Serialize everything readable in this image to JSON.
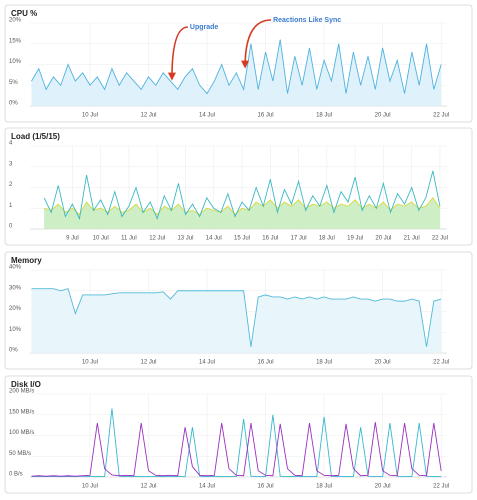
{
  "chart_data": [
    {
      "type": "area",
      "title": "CPU %",
      "x": [
        8,
        8.25,
        8.5,
        8.75,
        9,
        9.25,
        9.5,
        9.75,
        10,
        10.25,
        10.5,
        10.75,
        11,
        11.25,
        11.5,
        11.75,
        12,
        12.25,
        12.5,
        12.75,
        13,
        13.25,
        13.5,
        13.75,
        14,
        14.25,
        14.5,
        14.75,
        15,
        15.25,
        15.5,
        15.75,
        16,
        16.25,
        16.5,
        16.75,
        17,
        17.25,
        17.5,
        17.75,
        18,
        18.25,
        18.5,
        18.75,
        19,
        19.25,
        19.5,
        19.75,
        20,
        20.25,
        20.5,
        20.75,
        21,
        21.25,
        21.5,
        21.75,
        22
      ],
      "series": [
        {
          "color": "#4fb3e0",
          "fill": "#dcf0fa",
          "values": [
            6,
            9,
            4,
            7,
            5,
            10,
            6,
            8,
            5,
            7,
            4,
            9,
            5,
            8,
            6,
            4,
            7,
            5,
            8,
            6,
            4,
            7,
            9,
            5,
            3,
            6,
            10,
            5,
            8,
            4,
            15,
            4,
            13,
            6,
            16,
            3,
            12,
            5,
            14,
            4,
            11,
            6,
            15,
            3,
            13,
            5,
            12,
            4,
            14,
            6,
            11,
            3,
            13,
            5,
            15,
            4,
            10
          ]
        }
      ],
      "xlim": [
        7.95,
        22.2
      ],
      "ylim": [
        0,
        20
      ],
      "xticks": [
        {
          "value": 10,
          "label": "10 Jul"
        },
        {
          "value": 12,
          "label": "12 Jul"
        },
        {
          "value": 14,
          "label": "14 Jul"
        },
        {
          "value": 16,
          "label": "16 Jul"
        },
        {
          "value": 18,
          "label": "18 Jul"
        },
        {
          "value": 20,
          "label": "20 Jul"
        },
        {
          "value": 22,
          "label": "22 Jul"
        }
      ],
      "yticks": [
        {
          "value": 0,
          "label": "0%"
        },
        {
          "value": 5,
          "label": "5%"
        },
        {
          "value": 10,
          "label": "10%"
        },
        {
          "value": 15,
          "label": "15%"
        },
        {
          "value": 20,
          "label": "20%"
        }
      ],
      "grid": true,
      "annotations": [
        {
          "text": "Upgrade",
          "x": 12.8
        },
        {
          "text": "Reactions Like Sync",
          "x": 15.3
        }
      ]
    },
    {
      "type": "area",
      "title": "Load (1/5/15)",
      "x": [
        8,
        8.25,
        8.5,
        8.75,
        9,
        9.25,
        9.5,
        9.75,
        10,
        10.25,
        10.5,
        10.75,
        11,
        11.25,
        11.5,
        11.75,
        12,
        12.25,
        12.5,
        12.75,
        13,
        13.25,
        13.5,
        13.75,
        14,
        14.25,
        14.5,
        14.75,
        15,
        15.25,
        15.5,
        15.75,
        16,
        16.25,
        16.5,
        16.75,
        17,
        17.25,
        17.5,
        17.75,
        18,
        18.25,
        18.5,
        18.75,
        19,
        19.25,
        19.5,
        19.75,
        20,
        20.25,
        20.5,
        20.75,
        21,
        21.25,
        21.5,
        21.75,
        22
      ],
      "series": [
        {
          "color": "#d9d93a",
          "fill": "#c9ecc0",
          "values": [
            1.0,
            0.9,
            1.2,
            0.8,
            1.0,
            0.7,
            1.3,
            0.9,
            1.0,
            0.8,
            1.1,
            0.8,
            0.9,
            1.2,
            0.8,
            1.0,
            0.7,
            1.1,
            0.9,
            1.2,
            0.8,
            0.9,
            0.7,
            1.0,
            0.9,
            0.8,
            1.1,
            0.7,
            1.0,
            0.9,
            1.3,
            1.1,
            1.4,
            1.0,
            1.3,
            1.1,
            1.4,
            1.0,
            1.2,
            1.1,
            1.3,
            1.0,
            1.2,
            1.1,
            1.4,
            1.0,
            1.2,
            1.0,
            1.3,
            0.9,
            1.2,
            1.1,
            1.3,
            1.0,
            1.1,
            1.5,
            1.0
          ]
        },
        {
          "color": "#3bb8c4",
          "values": [
            1.5,
            0.8,
            2.1,
            0.6,
            1.2,
            0.5,
            2.6,
            0.9,
            1.4,
            0.7,
            1.8,
            0.6,
            1.1,
            2.0,
            0.8,
            1.3,
            0.5,
            1.6,
            0.9,
            2.2,
            0.7,
            1.2,
            0.6,
            1.5,
            1.0,
            0.8,
            1.7,
            0.6,
            1.3,
            0.9,
            2.0,
            1.1,
            2.4,
            0.8,
            1.9,
            1.2,
            2.3,
            0.9,
            1.6,
            1.1,
            2.1,
            0.8,
            1.8,
            1.3,
            2.5,
            0.9,
            1.6,
            1.0,
            2.2,
            0.8,
            1.7,
            1.2,
            2.0,
            0.9,
            1.5,
            2.8,
            1.1
          ]
        }
      ],
      "xlim": [
        7.5,
        22.25
      ],
      "ylim": [
        0,
        4
      ],
      "xticks": [
        {
          "value": 9,
          "label": "9 Jul"
        },
        {
          "value": 10,
          "label": "10 Jul"
        },
        {
          "value": 11,
          "label": "11 Jul"
        },
        {
          "value": 12,
          "label": "12 Jul"
        },
        {
          "value": 13,
          "label": "13 Jul"
        },
        {
          "value": 14,
          "label": "14 Jul"
        },
        {
          "value": 15,
          "label": "15 Jul"
        },
        {
          "value": 16,
          "label": "16 Jul"
        },
        {
          "value": 17,
          "label": "17 Jul"
        },
        {
          "value": 18,
          "label": "18 Jul"
        },
        {
          "value": 19,
          "label": "19 Jul"
        },
        {
          "value": 20,
          "label": "20 Jul"
        },
        {
          "value": 21,
          "label": "21 Jul"
        },
        {
          "value": 22,
          "label": "22 Jul"
        }
      ],
      "yticks": [
        0,
        1,
        2,
        3,
        4
      ],
      "grid": true
    },
    {
      "type": "area",
      "title": "Memory",
      "x": [
        8,
        8.25,
        8.5,
        8.75,
        9,
        9.25,
        9.5,
        9.75,
        10,
        10.25,
        10.5,
        10.75,
        11,
        11.25,
        11.5,
        11.75,
        12,
        12.25,
        12.5,
        12.75,
        13,
        13.25,
        13.5,
        13.75,
        14,
        14.25,
        14.5,
        14.75,
        15,
        15.25,
        15.5,
        15.75,
        16,
        16.25,
        16.5,
        16.75,
        17,
        17.25,
        17.5,
        17.75,
        18,
        18.25,
        18.5,
        18.75,
        19,
        19.25,
        19.5,
        19.75,
        20,
        20.25,
        20.5,
        20.75,
        21,
        21.25,
        21.5,
        21.75,
        22
      ],
      "series": [
        {
          "color": "#52b9d8",
          "fill": "#e6f5fb",
          "values": [
            31,
            31,
            31,
            31,
            30,
            31,
            19,
            28,
            28,
            28,
            28,
            28.5,
            29,
            29,
            29,
            29,
            29,
            29,
            29.5,
            26,
            30,
            30,
            30,
            30,
            30,
            30,
            30,
            30,
            30,
            30,
            3,
            27,
            28,
            27,
            27,
            26,
            27,
            26,
            27,
            26,
            27,
            26,
            26,
            26,
            27,
            26,
            26,
            25,
            26,
            26,
            25,
            25,
            26,
            25,
            3,
            25,
            26
          ]
        }
      ],
      "xlim": [
        7.95,
        22.2
      ],
      "ylim": [
        0,
        40
      ],
      "xticks": [
        {
          "value": 10,
          "label": "10 Jul"
        },
        {
          "value": 12,
          "label": "12 Jul"
        },
        {
          "value": 14,
          "label": "14 Jul"
        },
        {
          "value": 16,
          "label": "16 Jul"
        },
        {
          "value": 18,
          "label": "18 Jul"
        },
        {
          "value": 20,
          "label": "20 Jul"
        },
        {
          "value": 22,
          "label": "22 Jul"
        }
      ],
      "yticks": [
        {
          "value": 0,
          "label": "0%"
        },
        {
          "value": 10,
          "label": "10%"
        },
        {
          "value": 20,
          "label": "20%"
        },
        {
          "value": 30,
          "label": "30%"
        },
        {
          "value": 40,
          "label": "40%"
        }
      ],
      "grid": true
    },
    {
      "type": "line",
      "title": "Disk I/O",
      "x": [
        8,
        8.25,
        8.5,
        8.75,
        9,
        9.25,
        9.5,
        9.75,
        10,
        10.25,
        10.5,
        10.75,
        11,
        11.25,
        11.5,
        11.75,
        12,
        12.25,
        12.5,
        12.75,
        13,
        13.25,
        13.5,
        13.75,
        14,
        14.25,
        14.5,
        14.75,
        15,
        15.25,
        15.5,
        15.75,
        16,
        16.25,
        16.5,
        16.75,
        17,
        17.25,
        17.5,
        17.75,
        18,
        18.25,
        18.5,
        18.75,
        19,
        19.25,
        19.5,
        19.75,
        20,
        20.25,
        20.5,
        20.75,
        21,
        21.25,
        21.5,
        21.75,
        22
      ],
      "series": [
        {
          "color": "#38b8d0",
          "values": [
            1,
            1,
            1,
            1,
            1,
            1,
            1,
            2,
            1,
            1,
            1,
            165,
            2,
            1,
            1,
            1,
            1,
            1,
            1,
            1,
            1,
            1,
            120,
            2,
            1,
            1,
            1,
            1,
            1,
            140,
            2,
            1,
            1,
            150,
            2,
            1,
            1,
            1,
            1,
            1,
            145,
            2,
            1,
            1,
            1,
            120,
            2,
            1,
            1,
            130,
            2,
            1,
            1,
            130,
            2,
            1,
            1
          ]
        },
        {
          "color": "#9b30c0",
          "values": [
            2,
            3,
            2,
            3,
            2,
            3,
            2,
            3,
            4,
            130,
            20,
            5,
            3,
            4,
            3,
            130,
            15,
            4,
            3,
            4,
            3,
            120,
            25,
            4,
            3,
            4,
            130,
            20,
            4,
            3,
            130,
            15,
            4,
            3,
            128,
            20,
            4,
            3,
            130,
            15,
            4,
            3,
            4,
            128,
            20,
            3,
            4,
            132,
            15,
            4,
            3,
            130,
            20,
            4,
            3,
            130,
            15
          ]
        }
      ],
      "xlim": [
        7.95,
        22.2
      ],
      "ylim": [
        0,
        200
      ],
      "xticks": [
        {
          "value": 10,
          "label": "10 Jul"
        },
        {
          "value": 12,
          "label": "12 Jul"
        },
        {
          "value": 14,
          "label": "14 Jul"
        },
        {
          "value": 16,
          "label": "16 Jul"
        },
        {
          "value": 18,
          "label": "18 Jul"
        },
        {
          "value": 20,
          "label": "20 Jul"
        },
        {
          "value": 22,
          "label": "22 Jul"
        }
      ],
      "yticks": [
        {
          "value": 0,
          "label": "0 B/s"
        },
        {
          "value": 50,
          "label": "50 MB/s"
        },
        {
          "value": 100,
          "label": "100 MB/s"
        },
        {
          "value": 150,
          "label": "150 MB/s"
        },
        {
          "value": 200,
          "label": "200 MB/s"
        }
      ],
      "grid": true
    }
  ]
}
